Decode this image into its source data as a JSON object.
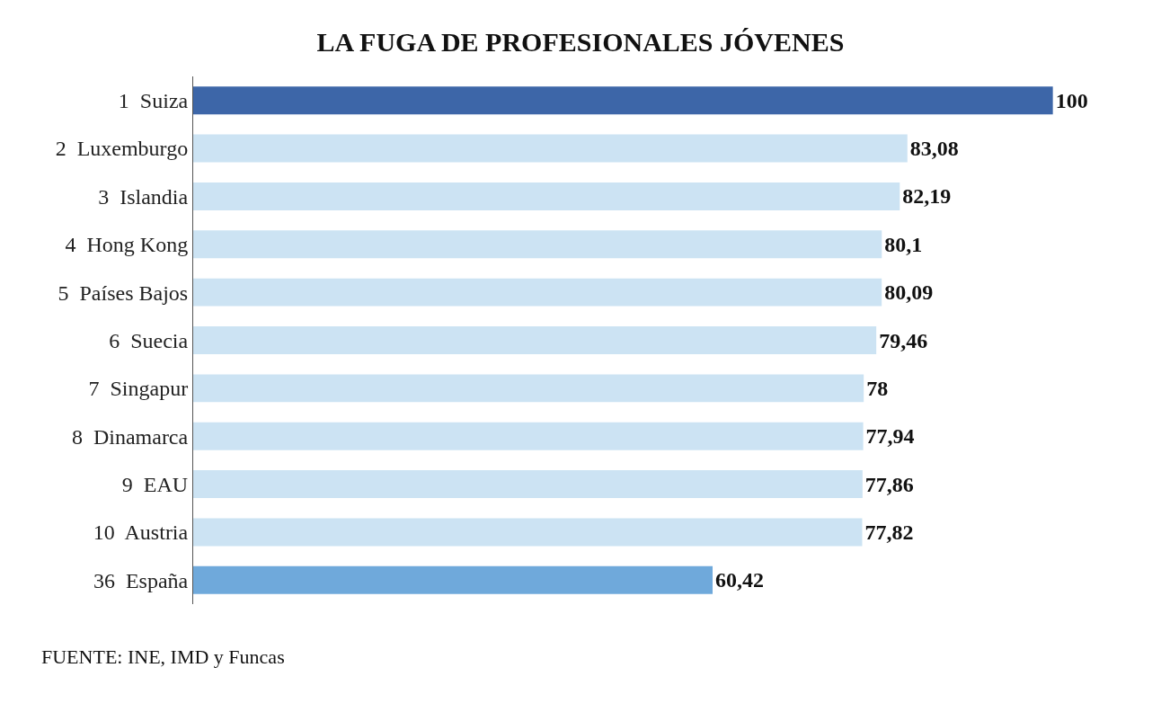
{
  "chart_data": {
    "type": "bar",
    "orientation": "horizontal",
    "title": "LA FUGA DE PROFESIONALES JÓVENES",
    "categories": [
      "1  Suiza",
      "2  Luxemburgo",
      "3  Islandia",
      "4  Hong Kong",
      "5  Países Bajos",
      "6  Suecia",
      "7  Singapur",
      "8  Dinamarca",
      "9  EAU",
      "10  Austria",
      "36  España"
    ],
    "values": [
      100,
      83.08,
      82.19,
      80.1,
      80.09,
      79.46,
      78,
      77.94,
      77.86,
      77.82,
      60.42
    ],
    "value_labels": [
      "100",
      "83,08",
      "82,19",
      "80,1",
      "80,09",
      "79,46",
      "78",
      "77,94",
      "77,86",
      "77,82",
      "60,42"
    ],
    "colors": [
      "#3d66a8",
      "#cce3f3",
      "#cce3f3",
      "#cce3f3",
      "#cce3f3",
      "#cce3f3",
      "#cce3f3",
      "#cce3f3",
      "#cce3f3",
      "#cce3f3",
      "#6fa9db"
    ],
    "annotations": [
      "FUENTE: INE, IMD y Funcas"
    ],
    "legend": false
  }
}
